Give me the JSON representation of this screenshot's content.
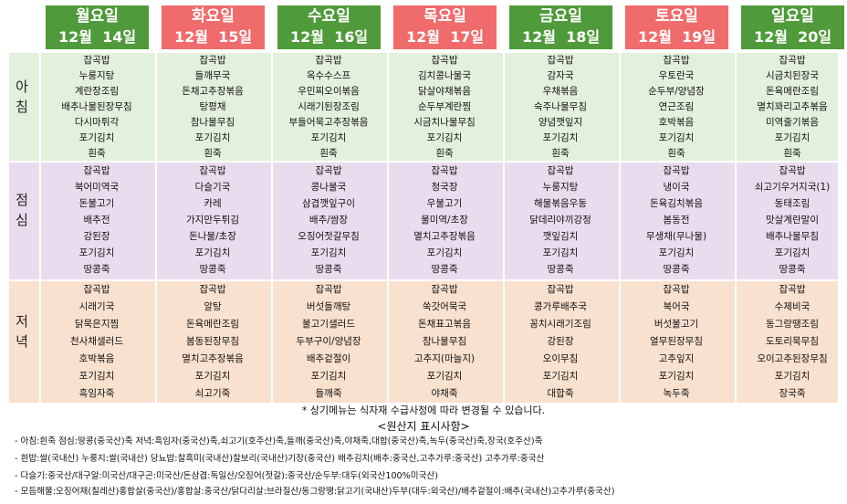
{
  "days": [
    {
      "day": "월요일",
      "date": "12월  14일",
      "color": "green",
      "breakfast": [
        "잡곡밥",
        "누룽지탕",
        "계란장조림",
        "배추나물된장무침",
        "다시마튀각",
        "포기김치",
        "흰죽"
      ],
      "lunch": [
        "잡곡밥",
        "북어미역국",
        "돈불고기",
        "배추전",
        "강된장",
        "포기김치",
        "땅콩죽"
      ],
      "dinner": [
        "잡곡밥",
        "시래기국",
        "닭묵은지찜",
        "천사채샐러드",
        "호박볶음",
        "포기김치",
        "흑임자죽"
      ]
    },
    {
      "day": "화요일",
      "date": "12월  15일",
      "color": "red",
      "breakfast": [
        "잡곡밥",
        "들깨무국",
        "돈채고추장볶음",
        "탕평채",
        "참나물무침",
        "포기김치",
        "흰죽"
      ],
      "lunch": [
        "잡곡밥",
        "다슬기국",
        "카레",
        "가지만두튀김",
        "돈나물/초장",
        "포기김치",
        "땅콩죽"
      ],
      "dinner": [
        "잡곡밥",
        "알탕",
        "돈육메란조림",
        "봄동된장무침",
        "멸치고추장볶음",
        "포기김치",
        "쇠고기죽"
      ]
    },
    {
      "day": "수요일",
      "date": "12월  16일",
      "color": "green",
      "breakfast": [
        "잡곡밥",
        "옥수수스프",
        "우민찌오이볶음",
        "시래기된장조림",
        "부들어묵고추장볶음",
        "포기김치",
        "흰죽"
      ],
      "lunch": [
        "잡곡밥",
        "콩나물국",
        "삼겹깻잎구이",
        "배추/쌈장",
        "오징어젓갈무침",
        "포기김치",
        "땅콩죽"
      ],
      "dinner": [
        "잡곡밥",
        "버섯들깨탕",
        "불고기샐러드",
        "두부구이/양념장",
        "배추겉절이",
        "포기김치",
        "들깨죽"
      ]
    },
    {
      "day": "목요일",
      "date": "12월  17일",
      "color": "red",
      "breakfast": [
        "잡곡밥",
        "김치콩나물국",
        "닭살야채볶음",
        "순두부계란찜",
        "시금치나물무침",
        "포기김치",
        "흰죽"
      ],
      "lunch": [
        "잡곡밥",
        "청국장",
        "우불고기",
        "물미역/초장",
        "멸치고추장볶음",
        "포기김치",
        "땅콩죽"
      ],
      "dinner": [
        "잡곡밥",
        "쑥갓어묵국",
        "돈채표고볶음",
        "참나물무침",
        "고추지(마늘지)",
        "포기김치",
        "야채죽"
      ]
    },
    {
      "day": "금요일",
      "date": "12월  18일",
      "color": "green",
      "breakfast": [
        "잡곡밥",
        "감자국",
        "우채볶음",
        "숙주나물무침",
        "양념깻잎지",
        "포기김치",
        "흰죽"
      ],
      "lunch": [
        "잡곡밥",
        "누룽지탕",
        "해물볶음우동",
        "닭데리야끼강정",
        "깻잎김치",
        "포기김치",
        "땅콩죽"
      ],
      "dinner": [
        "잡곡밥",
        "콩가루배추국",
        "꽁치시래기조림",
        "강된장",
        "오이무침",
        "포기김치",
        "대합죽"
      ]
    },
    {
      "day": "토요일",
      "date": "12월  19일",
      "color": "red",
      "breakfast": [
        "잡곡밥",
        "우토란국",
        "순두부/양념장",
        "연근조림",
        "호박볶음",
        "포기김치",
        "흰죽"
      ],
      "lunch": [
        "잡곡밥",
        "냉이국",
        "돈육김치볶음",
        "봄동전",
        "무생채(무나물)",
        "포기김치",
        "땅콩죽"
      ],
      "dinner": [
        "잡곡밥",
        "북어국",
        "버섯불고기",
        "열무된장무침",
        "고추잎지",
        "포기김치",
        "녹두죽"
      ]
    },
    {
      "day": "일요일",
      "date": "12월  20일",
      "color": "green",
      "breakfast": [
        "잡곡밥",
        "시금치된장국",
        "돈육메란조림",
        "멸치꽈리고추볶음",
        "미역줄기볶음",
        "포기김치",
        "흰죽"
      ],
      "lunch": [
        "잡곡밥",
        "쇠고기우거지국(1)",
        "동태조림",
        "맛살계란말이",
        "배추나물무침",
        "포기김치",
        "땅콩죽"
      ],
      "dinner": [
        "잡곡밥",
        "수제비국",
        "동그랑땡조림",
        "도토리묵무침",
        "오이고추된장무침",
        "포기김치",
        "장국죽"
      ]
    }
  ],
  "meals": {
    "breakfast": "아\n침",
    "lunch": "점\n심",
    "dinner": "저\n녁"
  },
  "notice": "*  상기메뉴는  식자재  수급사정에  따라  변경될  수  있습니다.",
  "origin_title": "<원산지  표시사항>",
  "origin_lines": [
    "-  아침:흰죽  점심:땅콩(중국산)죽  저녁:흑임자(중국산)죽,쇠고기(호주산)죽,들깨(중국산)죽,야채죽,대합(중국산)죽,녹두(중국산)죽,장국(호주산)죽",
    "-  흰밥:쌀(국내산)  누룽지:쌀(국내산)  당뇨밥:찰흑미(국내산)찰보리(국내산)기장(중국산)  배추김치(배추:중국산,고추가루:중국산)  고추가루:중국산",
    "-  다슬기:중국산/대구알:미국산/대구곤:미국산/돈삼겹:독일산/오징어(젓갈):중국산/순두부:대두(외국산100%미국산)",
    "-  모듬해물:오징어채(칠레산)홍합살(중국산)/홍합살:중국산/닭다리살:브라질산/동그랑땡:닭고기(국내산)두부(대두:외국산)/배추겉절이:배추(국내산)고추가루(중국산)"
  ]
}
